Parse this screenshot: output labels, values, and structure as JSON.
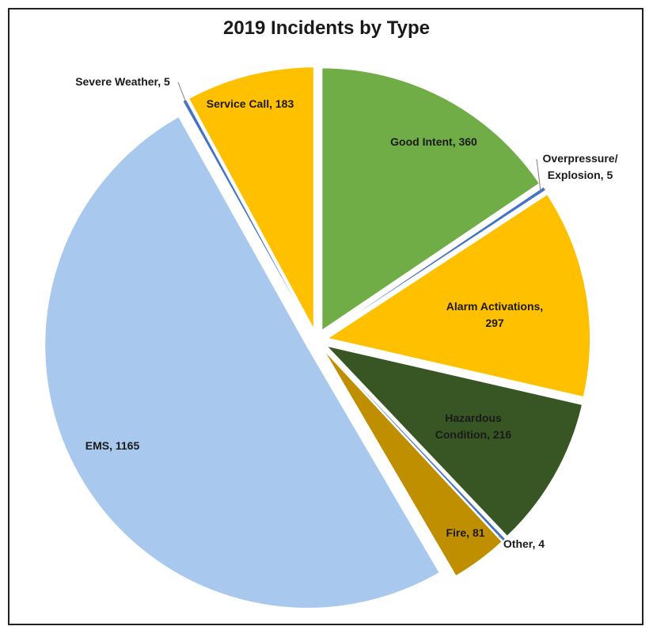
{
  "chart_data": {
    "type": "pie",
    "title": "2019 Incidents by Type",
    "slices": [
      {
        "label": [
          "Good Intent, 360"
        ],
        "value": 360,
        "color": "#70ad47"
      },
      {
        "label": [
          "Overpressure/",
          "Explosion, 5"
        ],
        "value": 5,
        "color": "#4472c4"
      },
      {
        "label": [
          "Alarm Activations,",
          "297"
        ],
        "value": 297,
        "color": "#ffc000"
      },
      {
        "label": [
          "Hazardous",
          "Condition, 216"
        ],
        "value": 216,
        "color": "#375623"
      },
      {
        "label": [
          "Other, 4"
        ],
        "value": 4,
        "color": "#4472c4"
      },
      {
        "label": [
          "Fire, 81"
        ],
        "value": 81,
        "color": "#bf8f00"
      },
      {
        "label": [
          "EMS, 1165"
        ],
        "value": 1165,
        "color": "#a9c8ee"
      },
      {
        "label": [
          "Severe Weather, 5"
        ],
        "value": 5,
        "color": "#4472c4"
      },
      {
        "label": [
          "Service Call, 183"
        ],
        "value": 183,
        "color": "#ffc000"
      }
    ]
  }
}
